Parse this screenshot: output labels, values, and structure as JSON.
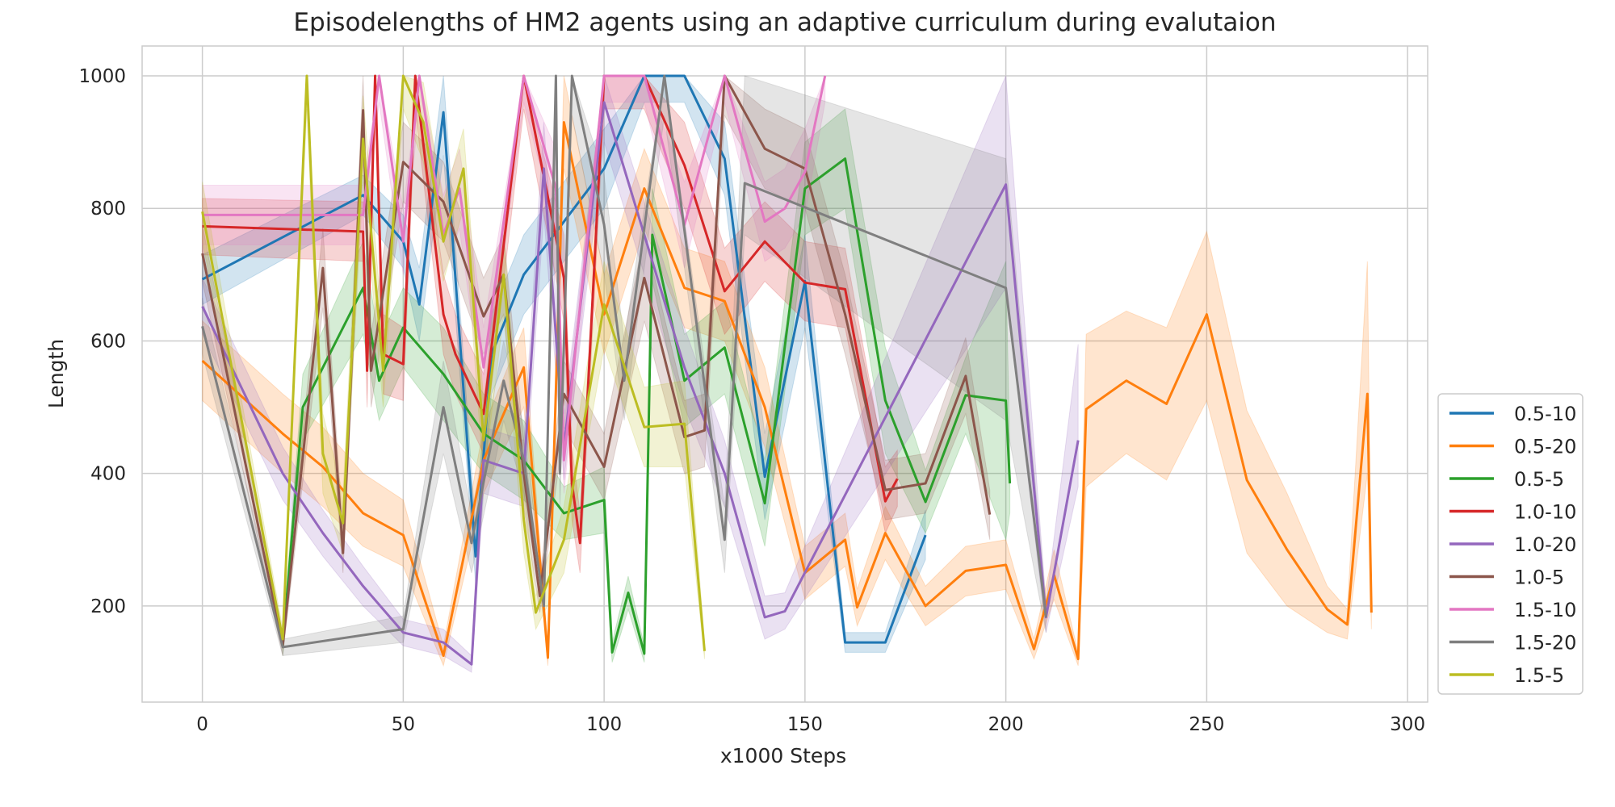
{
  "chart_data": {
    "type": "line",
    "title": "Episodelengths of HM2 agents using an adaptive curriculum during evalutaion",
    "xlabel": "x1000 Steps",
    "ylabel": "Length",
    "xlim": [
      -15,
      305
    ],
    "ylim": [
      55,
      1045
    ],
    "xticks": [
      0,
      50,
      100,
      150,
      200,
      250,
      300
    ],
    "yticks": [
      200,
      400,
      600,
      800,
      1000
    ],
    "xtick_labels": [
      "0",
      "50",
      "100",
      "150",
      "200",
      "250",
      "300"
    ],
    "ytick_labels": [
      "200",
      "400",
      "600",
      "800",
      "1000"
    ],
    "grid": true,
    "legend_position": "lower-right-outside",
    "series": [
      {
        "name": "0.5-10",
        "color": "#1f77b4",
        "x": [
          0,
          40,
          50,
          54,
          60,
          68,
          72,
          80,
          100,
          110,
          120,
          130,
          140,
          150,
          160,
          170,
          180
        ],
        "y": [
          693,
          820,
          750,
          655,
          945,
          275,
          580,
          700,
          860,
          1000,
          1000,
          875,
          395,
          690,
          145,
          145,
          307
        ],
        "lower": [
          655,
          790,
          710,
          600,
          880,
          235,
          520,
          640,
          800,
          960,
          960,
          820,
          330,
          620,
          130,
          130,
          270
        ],
        "upper": [
          730,
          850,
          790,
          710,
          1000,
          320,
          640,
          760,
          920,
          1000,
          1000,
          930,
          460,
          760,
          160,
          160,
          345
        ]
      },
      {
        "name": "0.5-20",
        "color": "#ff7f0e",
        "x": [
          0,
          20,
          30,
          40,
          50,
          60,
          70,
          80,
          86,
          90,
          100,
          110,
          120,
          130,
          140,
          150,
          160,
          163,
          170,
          180,
          190,
          200,
          207,
          212,
          218,
          220,
          230,
          240,
          250,
          260,
          270,
          280,
          285,
          290,
          291
        ],
        "y": [
          570,
          460,
          410,
          340,
          307,
          125,
          420,
          560,
          122,
          930,
          640,
          830,
          680,
          660,
          500,
          250,
          300,
          198,
          310,
          200,
          253,
          262,
          135,
          247,
          120,
          497,
          540,
          505,
          640,
          390,
          285,
          195,
          172,
          520,
          190
        ],
        "lower": [
          510,
          400,
          350,
          290,
          260,
          110,
          370,
          500,
          110,
          860,
          580,
          770,
          620,
          600,
          440,
          210,
          260,
          170,
          270,
          170,
          215,
          225,
          120,
          210,
          110,
          380,
          430,
          390,
          510,
          280,
          200,
          160,
          150,
          400,
          165
        ],
        "upper": [
          630,
          520,
          470,
          400,
          360,
          140,
          470,
          620,
          135,
          1000,
          700,
          890,
          740,
          720,
          560,
          290,
          340,
          225,
          350,
          230,
          290,
          300,
          150,
          285,
          130,
          610,
          645,
          620,
          765,
          495,
          370,
          230,
          195,
          720,
          215
        ]
      },
      {
        "name": "0.5-5",
        "color": "#2ca02c",
        "x": [
          20,
          25,
          40,
          44,
          50,
          60,
          70,
          80,
          90,
          100,
          102,
          106,
          110,
          112,
          120,
          130,
          140,
          150,
          160,
          170,
          180,
          190,
          200,
          201
        ],
        "y": [
          140,
          500,
          680,
          540,
          620,
          550,
          460,
          420,
          340,
          360,
          130,
          220,
          128,
          760,
          540,
          590,
          355,
          830,
          875,
          510,
          357,
          518,
          510,
          385
        ],
        "lower": [
          125,
          450,
          610,
          480,
          560,
          480,
          400,
          360,
          300,
          310,
          115,
          195,
          115,
          690,
          470,
          520,
          290,
          760,
          800,
          430,
          310,
          460,
          300,
          340
        ],
        "upper": [
          155,
          550,
          750,
          600,
          680,
          620,
          520,
          480,
          380,
          410,
          145,
          245,
          140,
          830,
          610,
          660,
          420,
          900,
          950,
          590,
          405,
          575,
          720,
          430
        ]
      },
      {
        "name": "1.0-10",
        "color": "#d62728",
        "x": [
          0,
          40,
          41,
          43,
          45,
          50,
          53,
          60,
          63,
          70,
          80,
          90,
          92,
          94,
          100,
          110,
          120,
          130,
          140,
          150,
          160,
          170,
          173
        ],
        "y": [
          773,
          765,
          555,
          1000,
          580,
          565,
          1000,
          640,
          580,
          490,
          1000,
          695,
          385,
          295,
          1000,
          1000,
          865,
          675,
          750,
          688,
          678,
          358,
          392
        ],
        "lower": [
          730,
          720,
          500,
          950,
          520,
          510,
          950,
          580,
          520,
          430,
          950,
          630,
          330,
          250,
          950,
          950,
          800,
          610,
          690,
          630,
          620,
          310,
          350
        ],
        "upper": [
          815,
          810,
          610,
          1000,
          640,
          620,
          1000,
          700,
          640,
          550,
          1000,
          760,
          440,
          340,
          1000,
          1000,
          930,
          740,
          810,
          750,
          740,
          410,
          435
        ]
      },
      {
        "name": "1.0-20",
        "color": "#9467bd",
        "x": [
          0,
          20,
          30,
          40,
          50,
          60,
          67,
          70,
          80,
          85,
          90,
          100,
          120,
          130,
          140,
          145,
          200,
          210,
          218
        ],
        "y": [
          652,
          400,
          310,
          230,
          160,
          145,
          112,
          420,
          400,
          860,
          440,
          960,
          560,
          400,
          183,
          192,
          836,
          183,
          450
        ],
        "lower": [
          610,
          360,
          275,
          200,
          140,
          125,
          100,
          370,
          350,
          790,
          390,
          900,
          500,
          350,
          150,
          165,
          680,
          160,
          380
        ],
        "upper": [
          695,
          440,
          345,
          260,
          180,
          165,
          125,
          470,
          450,
          930,
          490,
          1000,
          620,
          450,
          215,
          220,
          1000,
          205,
          595
        ]
      },
      {
        "name": "1.0-5",
        "color": "#8c564b",
        "x": [
          0,
          20,
          30,
          35,
          40,
          42,
          50,
          60,
          70,
          75,
          80,
          84,
          90,
          100,
          110,
          120,
          125,
          130,
          140,
          150,
          160,
          170,
          180,
          190,
          196
        ],
        "y": [
          732,
          140,
          710,
          280,
          948,
          555,
          870,
          810,
          637,
          700,
          400,
          215,
          520,
          410,
          695,
          455,
          465,
          1000,
          890,
          860,
          640,
          375,
          385,
          547,
          338
        ],
        "lower": [
          690,
          125,
          650,
          250,
          880,
          500,
          810,
          750,
          580,
          640,
          350,
          190,
          470,
          360,
          630,
          400,
          410,
          940,
          830,
          800,
          580,
          330,
          340,
          490,
          300
        ],
        "upper": [
          775,
          155,
          770,
          310,
          1000,
          610,
          930,
          870,
          695,
          760,
          450,
          240,
          570,
          460,
          760,
          510,
          520,
          1000,
          950,
          920,
          700,
          420,
          430,
          605,
          375
        ]
      },
      {
        "name": "1.5-10",
        "color": "#e377c2",
        "x": [
          0,
          40,
          44,
          50,
          54,
          60,
          64,
          70,
          80,
          88,
          90,
          100,
          110,
          120,
          130,
          140,
          145,
          150,
          155
        ],
        "y": [
          790,
          790,
          1000,
          750,
          1000,
          760,
          830,
          560,
          1000,
          830,
          420,
          1000,
          1000,
          775,
          1000,
          780,
          800,
          855,
          1000
        ],
        "lower": [
          745,
          745,
          960,
          700,
          960,
          700,
          770,
          500,
          960,
          770,
          370,
          960,
          960,
          710,
          960,
          720,
          740,
          790,
          960
        ],
        "upper": [
          835,
          835,
          1000,
          800,
          1000,
          820,
          890,
          620,
          1000,
          890,
          470,
          1000,
          1000,
          840,
          1000,
          840,
          860,
          920,
          1000
        ]
      },
      {
        "name": "1.5-20",
        "color": "#7f7f7f",
        "x": [
          0,
          20,
          50,
          60,
          67,
          75,
          80,
          85,
          88,
          89,
          92,
          100,
          105,
          115,
          130,
          135,
          200,
          210
        ],
        "y": [
          622,
          138,
          165,
          500,
          295,
          540,
          420,
          200,
          1000,
          400,
          1000,
          775,
          540,
          1000,
          300,
          838,
          680,
          183
        ],
        "lower": [
          580,
          125,
          145,
          430,
          250,
          480,
          370,
          180,
          940,
          350,
          940,
          700,
          480,
          940,
          250,
          760,
          480,
          160
        ],
        "upper": [
          665,
          150,
          185,
          570,
          340,
          600,
          470,
          220,
          1000,
          450,
          1000,
          850,
          600,
          1000,
          350,
          1000,
          875,
          205
        ]
      },
      {
        "name": "1.5-5",
        "color": "#bcbd22",
        "x": [
          0,
          20,
          26,
          30,
          35,
          40,
          45,
          50,
          55,
          60,
          65,
          70,
          75,
          80,
          83,
          90,
          100,
          110,
          120,
          125
        ],
        "y": [
          795,
          150,
          1000,
          430,
          325,
          905,
          555,
          1000,
          930,
          750,
          860,
          450,
          700,
          330,
          190,
          300,
          655,
          470,
          475,
          132
        ],
        "lower": [
          750,
          135,
          950,
          370,
          280,
          840,
          500,
          950,
          870,
          690,
          800,
          390,
          640,
          280,
          165,
          250,
          590,
          410,
          410,
          120
        ],
        "upper": [
          840,
          165,
          1000,
          490,
          370,
          970,
          610,
          1000,
          990,
          810,
          920,
          510,
          760,
          380,
          215,
          350,
          720,
          530,
          540,
          145
        ]
      }
    ]
  }
}
